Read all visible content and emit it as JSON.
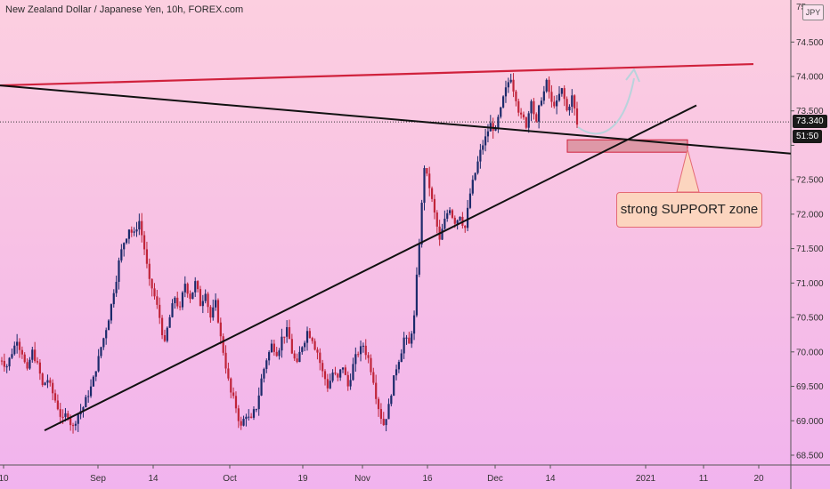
{
  "title": "New Zealand Dollar / Japanese Yen, 10h, FOREX.com",
  "currency": "JPY",
  "price_badges": {
    "last": "73.340",
    "countdown": "51:50"
  },
  "annotation": {
    "text": "strong SUPPORT zone"
  },
  "colors": {
    "resistance": "#d0213c",
    "trendline": "#111111",
    "up": "#1c2a6b",
    "down": "#c0243a",
    "zone": "#d98f9c",
    "arrow": "#b9d3dc"
  },
  "chart_data": {
    "type": "candlestick",
    "title": "New Zealand Dollar / Japanese Yen, 10h, FOREX.com",
    "ylim": [
      68.3,
      75.3
    ],
    "yticks": [
      68.5,
      69.0,
      69.5,
      70.0,
      70.5,
      71.0,
      71.5,
      72.0,
      72.5,
      73.0,
      73.5,
      74.0,
      74.5
    ],
    "ytick_labels": [
      "68.500",
      "69.000",
      "69.500",
      "70.000",
      "70.500",
      "71.000",
      "71.500",
      "72.000",
      "72.500",
      "",
      "73.500",
      "74.000",
      "74.500"
    ],
    "top_tick_partial": "75.",
    "xticks": [
      "10",
      "Sep",
      "14",
      "Oct",
      "19",
      "Nov",
      "16",
      "Dec",
      "14",
      "2021",
      "11",
      "20"
    ],
    "last_price": 73.34,
    "series": [
      {
        "name": "path_down_1",
        "values": [
          69.9,
          69.8,
          70.0,
          70.2,
          70.0,
          69.7,
          70.0,
          69.8,
          69.5,
          69.6,
          69.4,
          69.2,
          69.0,
          69.1,
          68.9,
          69.1,
          69.2,
          69.4,
          69.6,
          69.9,
          70.2,
          70.5,
          70.9,
          71.3,
          71.6,
          71.8,
          71.7,
          71.9,
          71.5,
          71.0,
          70.8,
          70.5,
          70.1,
          70.5,
          70.8,
          70.6,
          71.0,
          70.8,
          71.0,
          70.7,
          70.9,
          70.5,
          70.7,
          70.2,
          69.8,
          69.4,
          69.2,
          68.9,
          69.1,
          69.0,
          69.2,
          69.6,
          69.9,
          70.1,
          70.0,
          70.2,
          70.3,
          70.0,
          69.8,
          70.1,
          70.3,
          70.2,
          70.0,
          69.7,
          69.5,
          69.7,
          69.6,
          69.8,
          69.5,
          69.8,
          70.0,
          70.1,
          69.9,
          69.6,
          69.2,
          68.95,
          69.2,
          69.6,
          69.9,
          70.2,
          70.1,
          70.5,
          71.6,
          72.7,
          72.4,
          72.0,
          71.6,
          71.9,
          72.1,
          71.9,
          72.0,
          71.8,
          72.3,
          72.6,
          72.9,
          73.1,
          73.3,
          73.2,
          73.5,
          73.8,
          74.0,
          73.7,
          73.4,
          73.3,
          73.7,
          73.3,
          73.7,
          73.9,
          73.6,
          73.6,
          73.8,
          73.5,
          73.7,
          73.3
        ],
        "marker": "none"
      }
    ],
    "lines": [
      {
        "name": "resistance",
        "start": [
          "Aug 10",
          73.87
        ],
        "end": [
          "Jan 22",
          74.18
        ]
      },
      {
        "name": "descending_line",
        "start": [
          "Aug 10",
          73.87
        ],
        "end": [
          "Jan 25",
          72.88
        ]
      },
      {
        "name": "ascending_support",
        "start": [
          "Aug 16",
          68.86
        ],
        "end": [
          "Jan 8",
          73.58
        ]
      }
    ],
    "zone": {
      "y_range": [
        72.9,
        73.08
      ]
    }
  }
}
